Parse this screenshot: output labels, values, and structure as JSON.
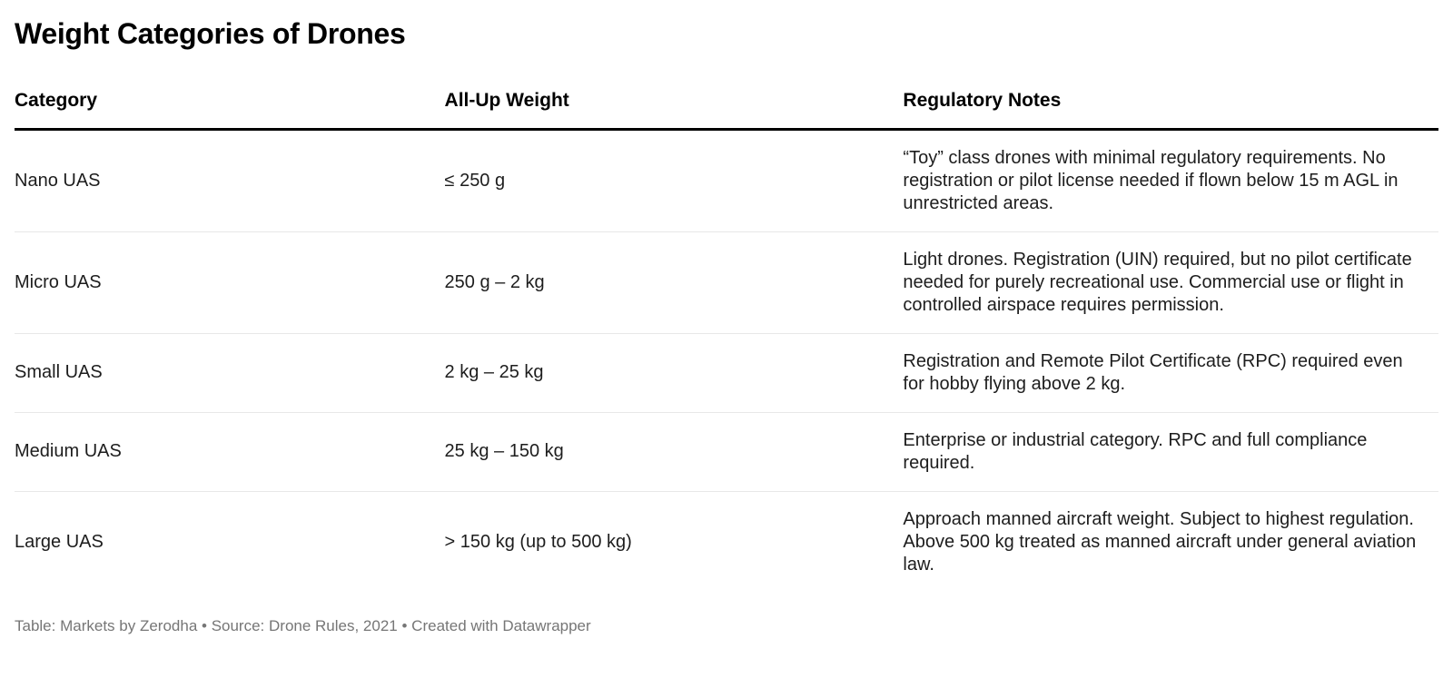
{
  "chart_data": {
    "type": "table",
    "title": "Weight Categories of Drones",
    "columns": [
      "Category",
      "All-Up Weight",
      "Regulatory Notes"
    ],
    "rows": [
      {
        "category": "Nano UAS",
        "weight": "≤ 250 g",
        "notes": "“Toy” class drones with minimal regulatory requirements. No registration or pilot license needed if flown below 15 m AGL in unrestricted areas."
      },
      {
        "category": "Micro UAS",
        "weight": "250 g – 2 kg",
        "notes": "Light drones. Registration (UIN) required, but no pilot certificate needed for purely recreational use. Commercial use or flight in controlled airspace requires permission."
      },
      {
        "category": "Small UAS",
        "weight": "2 kg – 25 kg",
        "notes": "Registration and Remote Pilot Certificate (RPC) required even for hobby flying above 2 kg."
      },
      {
        "category": "Medium UAS",
        "weight": "25 kg – 150 kg",
        "notes": "Enterprise or industrial category. RPC and full compliance required."
      },
      {
        "category": "Large UAS",
        "weight": "> 150 kg (up to 500 kg)",
        "notes": "Approach manned aircraft weight. Subject to highest regulation. Above 500 kg treated as manned aircraft under general aviation law."
      }
    ],
    "layout": {
      "header_rule_color": "#000000",
      "row_divider_color": "#e8e8e8",
      "body_text_color": "#1d1d1d",
      "footer_text_color": "#767676",
      "background": "#ffffff"
    }
  },
  "footer": {
    "table_label": "Table: ",
    "byline": "Markets by Zerodha",
    "separator1": " • ",
    "source_label": "Source: ",
    "source": "Drone Rules, 2021",
    "separator2": " • ",
    "created_label": "Created with ",
    "tool": "Datawrapper"
  }
}
